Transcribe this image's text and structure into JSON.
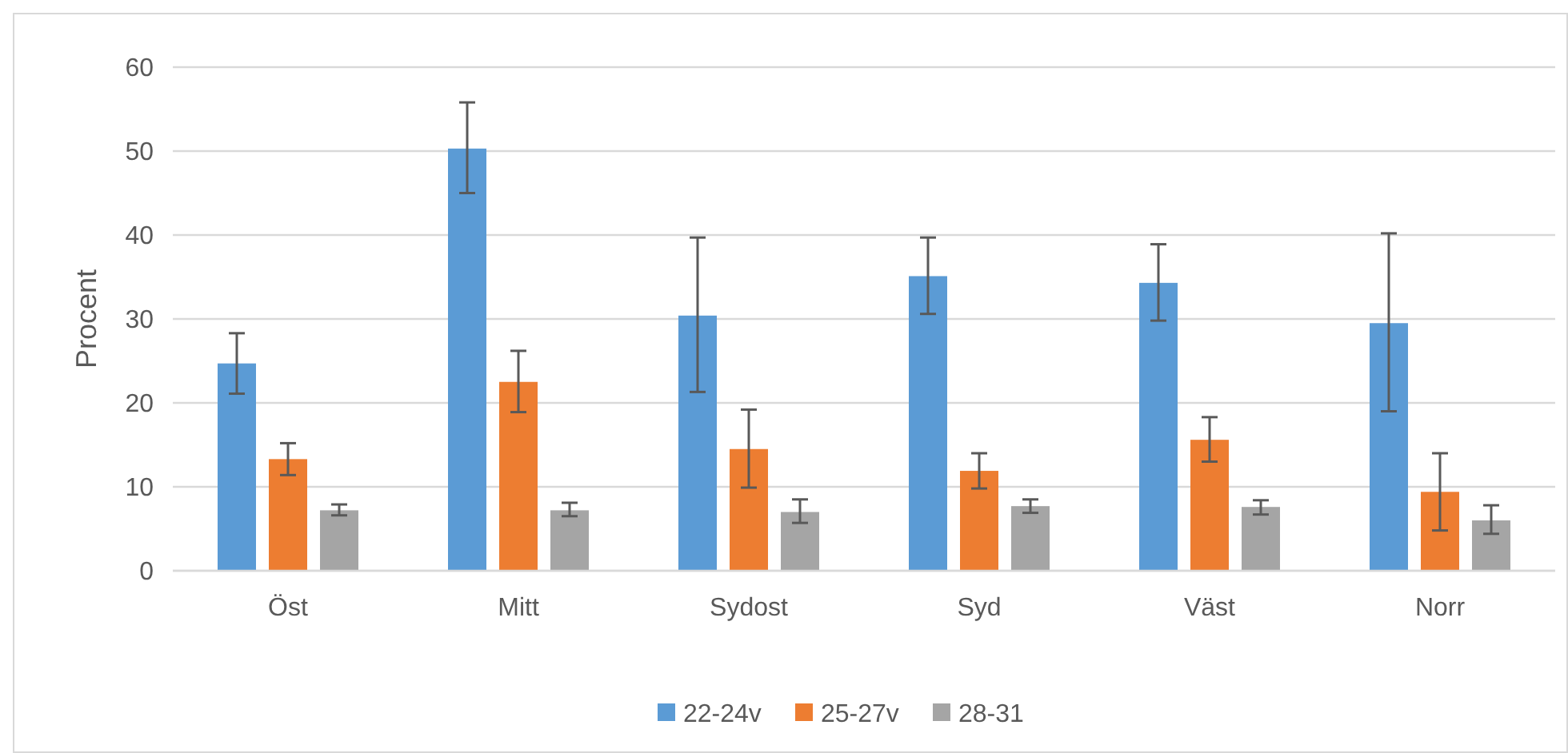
{
  "chart_data": {
    "type": "bar",
    "ylabel": "Procent",
    "categories": [
      "Öst",
      "Mitt",
      "Sydost",
      "Syd",
      "Väst",
      "Norr"
    ],
    "series": [
      {
        "name": "22-24v",
        "color": "#5b9bd5",
        "values": [
          24.7,
          50.3,
          30.4,
          35.1,
          34.3,
          29.5
        ],
        "errors": [
          [
            21.1,
            28.3
          ],
          [
            45.0,
            55.8
          ],
          [
            21.3,
            39.7
          ],
          [
            30.6,
            39.7
          ],
          [
            29.8,
            38.9
          ],
          [
            19.0,
            40.2
          ]
        ]
      },
      {
        "name": "25-27v",
        "color": "#ed7d31",
        "values": [
          13.3,
          22.5,
          14.5,
          11.9,
          15.6,
          9.4
        ],
        "errors": [
          [
            11.4,
            15.2
          ],
          [
            18.9,
            26.2
          ],
          [
            9.9,
            19.2
          ],
          [
            9.8,
            14.0
          ],
          [
            13.0,
            18.3
          ],
          [
            4.8,
            14.0
          ]
        ]
      },
      {
        "name": "28-31",
        "color": "#a5a5a5",
        "values": [
          7.2,
          7.2,
          7.0,
          7.7,
          7.6,
          6.0
        ],
        "errors": [
          [
            6.6,
            7.9
          ],
          [
            6.5,
            8.1
          ],
          [
            5.7,
            8.5
          ],
          [
            6.9,
            8.5
          ],
          [
            6.7,
            8.4
          ],
          [
            4.4,
            7.8
          ]
        ]
      }
    ],
    "ylim": [
      0,
      60
    ],
    "yticks": [
      0,
      10,
      20,
      30,
      40,
      50,
      60
    ],
    "grid": "y",
    "legend": "bottom"
  }
}
